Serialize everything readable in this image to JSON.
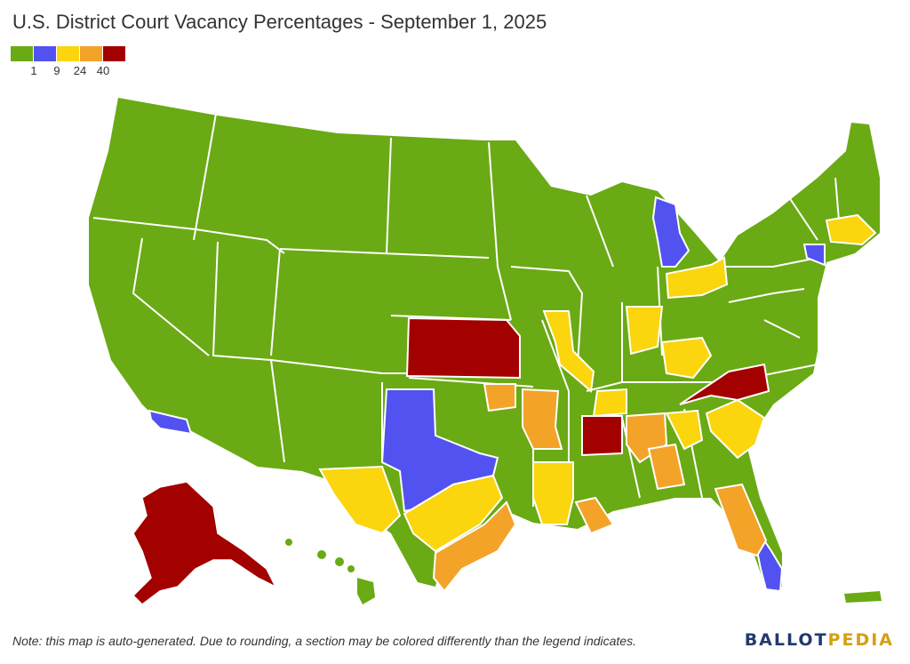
{
  "title": "U.S. District Court Vacancy Percentages - September 1, 2025",
  "legend": {
    "colors": [
      "#6aaa14",
      "#5252f0",
      "#fbd50e",
      "#f4a329",
      "#a30000"
    ],
    "breaks": [
      "1",
      "9",
      "24",
      "40"
    ]
  },
  "footnote": "Note: this map is auto-generated. Due to rounding, a section may be colored differently than the legend indicates.",
  "logo": {
    "part1": "BALLOT",
    "part2": "PEDIA",
    "colors": [
      "#1f3a6e",
      "#d4a012"
    ]
  },
  "colors": {
    "green": "#6aaa14",
    "blue": "#5252f0",
    "yellow": "#fbd50e",
    "orange": "#f4a329",
    "red": "#a30000",
    "border": "#ffffff"
  },
  "highlighted_regions": {
    "red": [
      "Kansas",
      "Mississippi",
      "North Carolina (western)",
      "Alaska"
    ],
    "blue": [
      "Texas (northern)",
      "Michigan (western)",
      "Florida (southern)",
      "California (central)",
      "Connecticut"
    ],
    "yellow": [
      "Texas (western)",
      "Texas (southern)",
      "Ohio (northern)",
      "Indiana (southern)",
      "Missouri (eastern)",
      "Kentucky (eastern)",
      "Tennessee (western)",
      "Louisiana (western)",
      "South Carolina",
      "Massachusetts"
    ],
    "orange": [
      "Arkansas (western)",
      "Alabama (northern)",
      "Georgia (middle)",
      "Louisiana (eastern)",
      "Florida (middle)",
      "Texas (eastern)",
      "Oklahoma (eastern)"
    ]
  }
}
